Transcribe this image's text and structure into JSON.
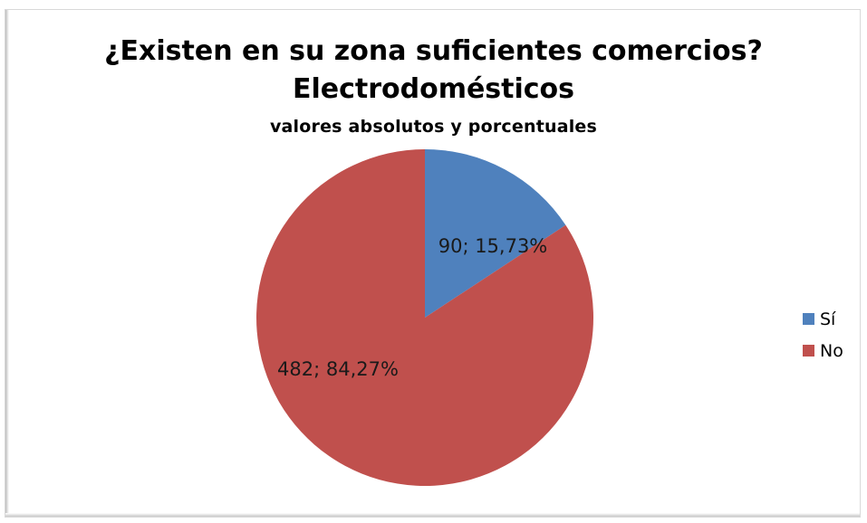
{
  "chart_data": {
    "type": "pie",
    "title": "¿Existen en su zona suficientes comercios?",
    "title_line2": "Electrodomésticos",
    "subtitle": "valores absolutos y porcentuales",
    "categories": [
      "Sí",
      "No"
    ],
    "values": [
      90,
      482
    ],
    "percentages": [
      15.73,
      84.27
    ],
    "data_labels": [
      "90; 15,73%",
      "482; 84,27%"
    ],
    "colors": [
      "#4f81bd",
      "#c0504d"
    ],
    "legend": {
      "placement": "right",
      "entries": [
        "Sí",
        "No"
      ]
    },
    "start_angle_deg": 0,
    "direction": "clockwise"
  }
}
